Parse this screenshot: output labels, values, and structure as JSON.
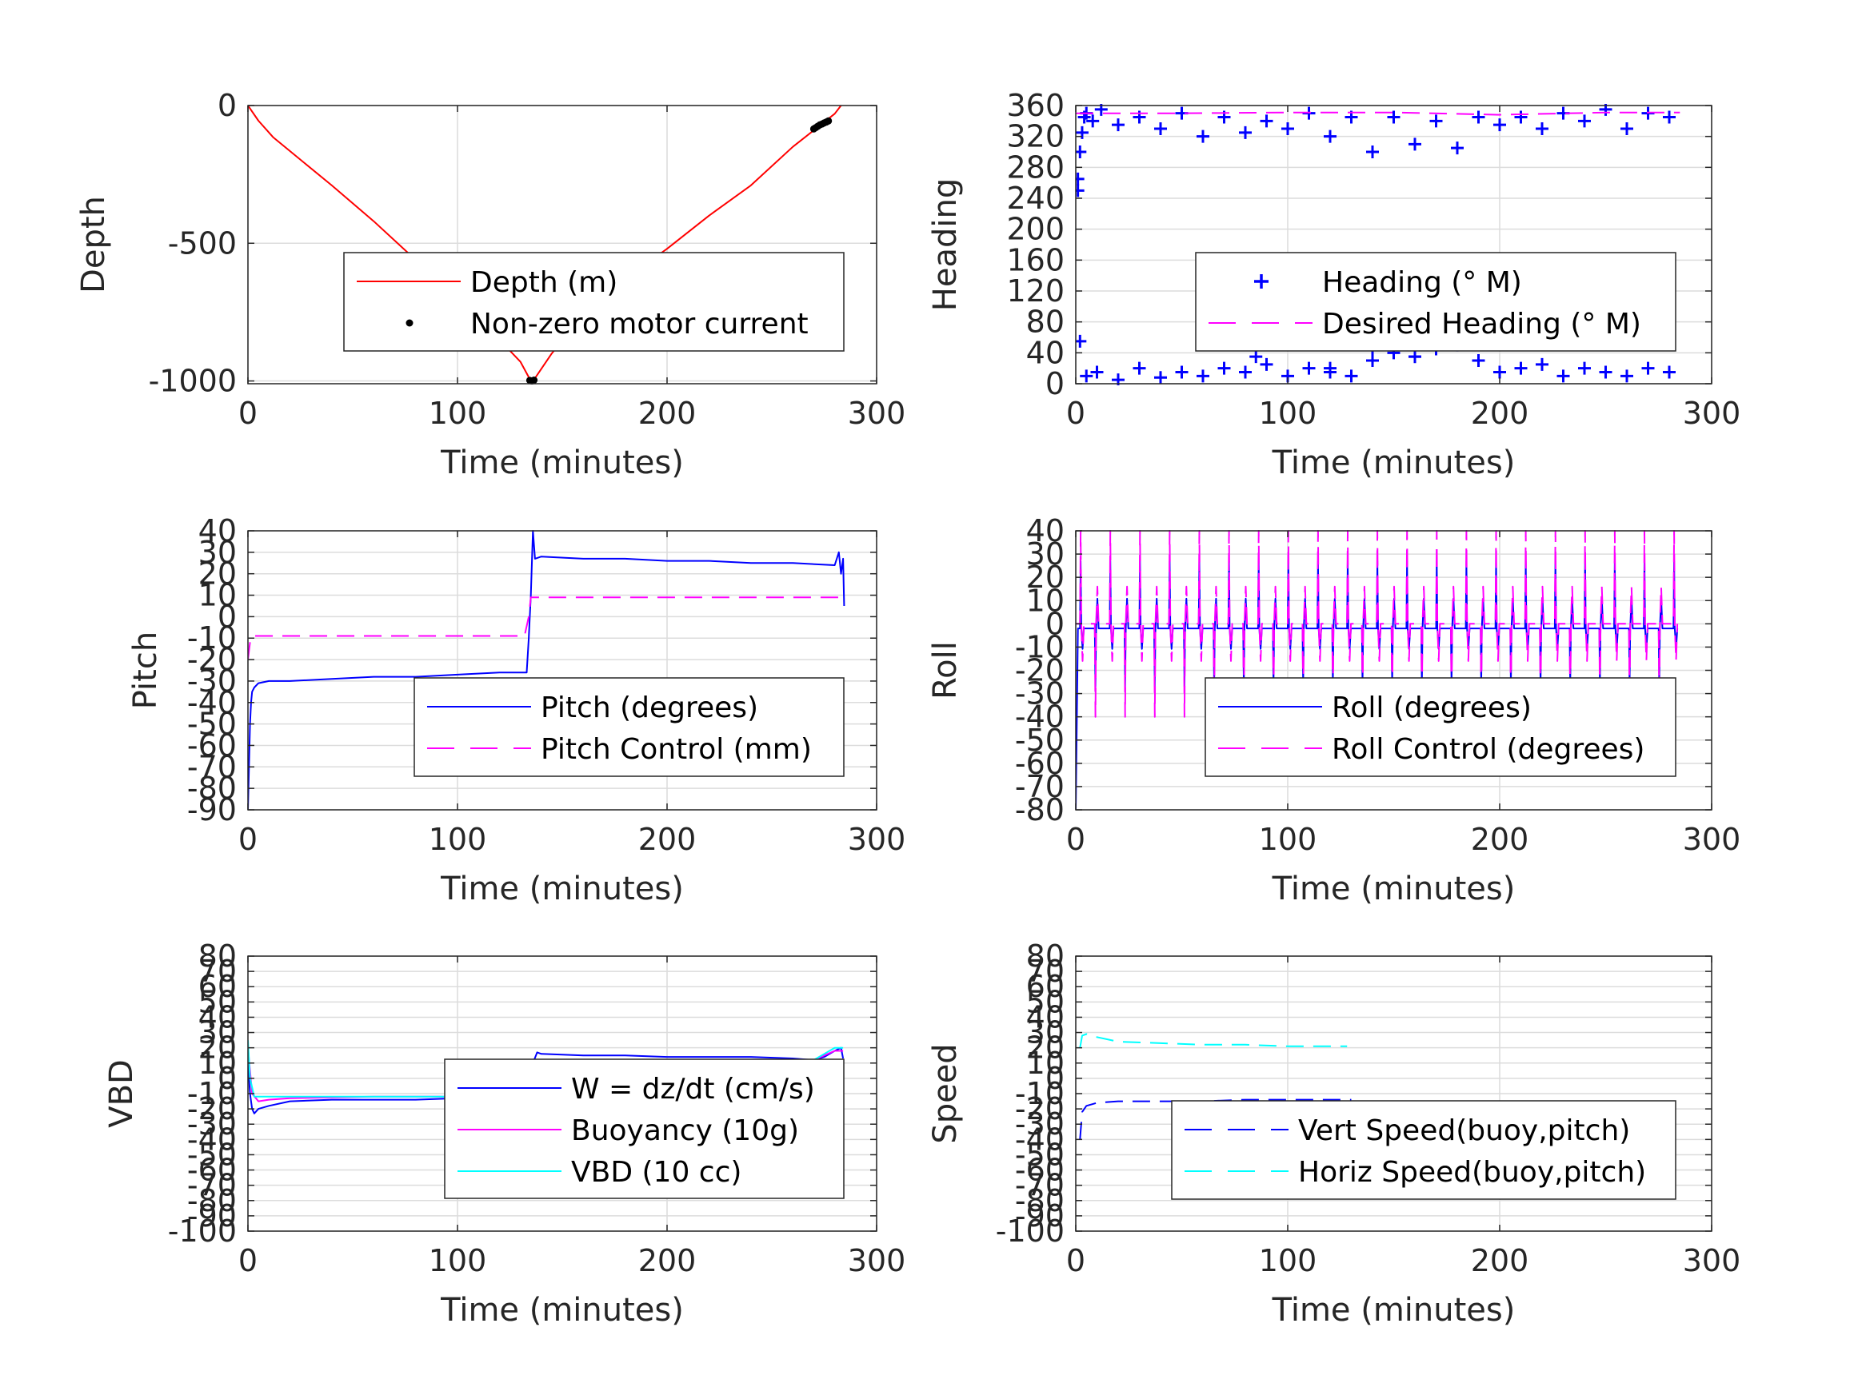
{
  "chart_data": [
    {
      "type": "line",
      "xlabel": "Time (minutes)",
      "ylabel": "Depth",
      "xlim": [
        0,
        300
      ],
      "ylim": [
        -1010,
        0
      ],
      "xticks": [
        0,
        100,
        200,
        300
      ],
      "yticks": [
        0,
        -500,
        -1000
      ],
      "ytick_labels": [
        "0",
        "-500",
        "-1000"
      ],
      "grid": true,
      "legend_position": "center-right",
      "series": [
        {
          "name": "Depth (m)",
          "color": "#ff0000",
          "style": "solid",
          "x": [
            0,
            5,
            12,
            20,
            40,
            60,
            80,
            100,
            120,
            130,
            135,
            137,
            145,
            160,
            180,
            200,
            220,
            240,
            260,
            270,
            280,
            283
          ],
          "y": [
            0,
            -55,
            -115,
            -165,
            -290,
            -420,
            -560,
            -700,
            -850,
            -930,
            -1000,
            -990,
            -900,
            -760,
            -630,
            -520,
            -400,
            -290,
            -150,
            -90,
            -30,
            0
          ]
        },
        {
          "name": "Non-zero motor current",
          "color": "#000000",
          "style": "markers",
          "marker": "dot",
          "x": [
            134.5,
            135.5,
            136.5,
            270,
            271,
            272,
            273,
            274,
            275,
            276,
            277
          ],
          "y": [
            -998,
            -1000,
            -997,
            -85,
            -80,
            -75,
            -70,
            -67,
            -63,
            -60,
            -56
          ]
        }
      ]
    },
    {
      "type": "scatter",
      "xlabel": "Time (minutes)",
      "ylabel": "Heading",
      "xlim": [
        0,
        300
      ],
      "ylim": [
        0,
        360
      ],
      "xticks": [
        0,
        100,
        200,
        300
      ],
      "yticks": [
        0,
        40,
        80,
        120,
        160,
        200,
        240,
        280,
        320,
        360
      ],
      "ytick_labels": [
        "0",
        "40",
        "80",
        "120",
        "160",
        "200",
        "240",
        "280",
        "320",
        "360"
      ],
      "grid": true,
      "legend_position": "center-right",
      "series": [
        {
          "name": "Heading (° M)",
          "color": "#0000ff",
          "style": "markers",
          "marker": "plus",
          "x": [
            1,
            1,
            2,
            3,
            4,
            5,
            8,
            12,
            20,
            30,
            40,
            50,
            60,
            70,
            80,
            90,
            100,
            110,
            120,
            130,
            140,
            150,
            160,
            170,
            180,
            190,
            200,
            210,
            220,
            230,
            240,
            250,
            260,
            270,
            280,
            2,
            5,
            10,
            20,
            30,
            40,
            50,
            60,
            70,
            80,
            90,
            100,
            110,
            120,
            130,
            140,
            150,
            160,
            170,
            180,
            190,
            200,
            210,
            220,
            230,
            240,
            250,
            260,
            270,
            280,
            85,
            120,
            140,
            160,
            185
          ],
          "y": [
            250,
            265,
            300,
            325,
            345,
            350,
            340,
            355,
            335,
            345,
            330,
            350,
            320,
            345,
            325,
            340,
            330,
            350,
            320,
            345,
            300,
            345,
            310,
            340,
            305,
            345,
            335,
            345,
            330,
            350,
            340,
            355,
            330,
            350,
            345,
            55,
            10,
            15,
            5,
            20,
            8,
            15,
            10,
            20,
            15,
            25,
            10,
            20,
            15,
            10,
            30,
            40,
            35,
            45,
            50,
            30,
            15,
            20,
            25,
            10,
            20,
            15,
            10,
            20,
            15,
            35,
            20,
            45,
            35,
            55
          ]
        },
        {
          "name": "Desired Heading (° M)",
          "color": "#ff00ff",
          "style": "dashed",
          "x": [
            0,
            50,
            100,
            150,
            200,
            250,
            285
          ],
          "y": [
            350,
            350,
            351,
            351,
            348,
            351,
            351
          ]
        }
      ]
    },
    {
      "type": "line",
      "xlabel": "Time (minutes)",
      "ylabel": "Pitch",
      "xlim": [
        0,
        300
      ],
      "ylim": [
        -90,
        40
      ],
      "xticks": [
        0,
        100,
        200,
        300
      ],
      "yticks": [
        40,
        30,
        20,
        10,
        0,
        -10,
        -20,
        -30,
        -40,
        -50,
        -60,
        -70,
        -80,
        -90
      ],
      "ytick_labels": [
        "40",
        "30",
        "20",
        "10",
        "0",
        "-10",
        "-20",
        "-30",
        "-40",
        "-50",
        "-60",
        "-70",
        "-80",
        "-90"
      ],
      "grid": true,
      "legend_position": "center-right",
      "series": [
        {
          "name": "Pitch (degrees)",
          "color": "#0000ff",
          "style": "solid",
          "x": [
            0,
            0.5,
            1,
            1.5,
            2,
            3,
            5,
            10,
            20,
            40,
            60,
            80,
            100,
            120,
            133,
            134,
            135,
            136,
            137,
            140,
            160,
            180,
            200,
            220,
            240,
            260,
            280,
            282,
            283,
            284,
            284.5
          ],
          "y": [
            -90,
            -70,
            -50,
            -40,
            -35,
            -33,
            -31,
            -30,
            -30,
            -29,
            -28,
            -28,
            -27,
            -26,
            -26,
            -10,
            10,
            40,
            27,
            28,
            27,
            27,
            26,
            26,
            25,
            25,
            24,
            30,
            20,
            27,
            5
          ]
        },
        {
          "name": "Pitch Control (mm)",
          "color": "#ff00ff",
          "style": "dashed",
          "x": [
            0,
            1,
            2,
            5,
            50,
            100,
            132,
            134,
            135,
            140,
            200,
            250,
            284
          ],
          "y": [
            -20,
            -12,
            -9,
            -9,
            -9,
            -9,
            -9,
            0,
            9,
            9,
            9,
            9,
            9
          ]
        }
      ]
    },
    {
      "type": "line",
      "xlabel": "Time (minutes)",
      "ylabel": "Roll",
      "xlim": [
        0,
        300
      ],
      "ylim": [
        -80,
        40
      ],
      "xticks": [
        0,
        100,
        200,
        300
      ],
      "yticks": [
        40,
        30,
        20,
        10,
        0,
        -10,
        -20,
        -30,
        -40,
        -50,
        -60,
        -70,
        -80
      ],
      "ytick_labels": [
        "40",
        "30",
        "20",
        "10",
        "0",
        "-10",
        "-20",
        "-30",
        "-40",
        "-50",
        "-60",
        "-70",
        "-80"
      ],
      "grid": true,
      "legend_position": "center-right",
      "oscillation": {
        "start": 2,
        "end": 283,
        "period": 7
      },
      "series": [
        {
          "name": "Roll (degrees)",
          "color": "#0000ff",
          "style": "solid",
          "spike_high": 27,
          "spike_low": -27,
          "base": -2,
          "start_min": -80
        },
        {
          "name": "Roll Control (degrees)",
          "color": "#ff00ff",
          "style": "dashed",
          "spike_high": 40,
          "spike_low": -40,
          "base": 0
        }
      ]
    },
    {
      "type": "line",
      "xlabel": "Time (minutes)",
      "ylabel": "VBD",
      "xlim": [
        0,
        300
      ],
      "ylim": [
        -100,
        80
      ],
      "xticks": [
        0,
        100,
        200,
        300
      ],
      "yticks": [
        80,
        70,
        60,
        50,
        40,
        30,
        20,
        10,
        0,
        -10,
        -20,
        -30,
        -40,
        -50,
        -60,
        -70,
        -80,
        -90,
        -100
      ],
      "ytick_labels": [
        "80",
        "70",
        "60",
        "50",
        "40",
        "30",
        "20",
        "10",
        "0",
        "-10",
        "-20",
        "-30",
        "-40",
        "-50",
        "-60",
        "-70",
        "-80",
        "-90",
        "-100"
      ],
      "grid": true,
      "legend_position": "center-right",
      "series": [
        {
          "name": "W = dz/dt (cm/s)",
          "color": "#0000ff",
          "style": "solid",
          "x": [
            0,
            1,
            2,
            3,
            5,
            10,
            20,
            40,
            60,
            80,
            100,
            120,
            133,
            134,
            136,
            138,
            140,
            160,
            180,
            200,
            220,
            240,
            260,
            270,
            275,
            280,
            283,
            284
          ],
          "y": [
            10,
            -10,
            -20,
            -23,
            -20,
            -18,
            -15,
            -14,
            -14,
            -14,
            -13,
            -13,
            -12,
            0,
            10,
            17,
            16,
            15,
            15,
            14,
            14,
            14,
            13,
            12,
            14,
            18,
            20,
            13
          ]
        },
        {
          "name": "Buoyancy (10g)",
          "color": "#ff00ff",
          "style": "solid",
          "x": [
            0,
            2,
            5,
            10,
            20,
            60,
            100,
            133,
            135,
            137,
            150,
            200,
            250,
            270,
            275,
            280,
            284
          ],
          "y": [
            20,
            -10,
            -15,
            -14,
            -13,
            -12,
            -12,
            -12,
            5,
            12,
            12,
            12,
            12,
            12,
            15,
            18,
            18
          ]
        },
        {
          "name": "VBD (10 cc)",
          "color": "#00ffff",
          "style": "solid",
          "x": [
            0,
            1,
            3,
            5,
            10,
            50,
            100,
            133,
            135,
            137,
            150,
            200,
            250,
            270,
            275,
            280,
            284
          ],
          "y": [
            25,
            0,
            -12,
            -12,
            -12,
            -12,
            -12,
            -12,
            5,
            12,
            12,
            12,
            12,
            12,
            16,
            20,
            20
          ]
        }
      ]
    },
    {
      "type": "line",
      "xlabel": "Time (minutes)",
      "ylabel": "Speed",
      "xlim": [
        0,
        300
      ],
      "ylim": [
        -100,
        80
      ],
      "xticks": [
        0,
        100,
        200,
        300
      ],
      "yticks": [
        80,
        70,
        60,
        50,
        40,
        30,
        20,
        10,
        0,
        -10,
        -20,
        -30,
        -40,
        -50,
        -60,
        -70,
        -80,
        -90,
        -100
      ],
      "ytick_labels": [
        "80",
        "70",
        "60",
        "50",
        "40",
        "30",
        "20",
        "10",
        "0",
        "-10",
        "-20",
        "-30",
        "-40",
        "-50",
        "-60",
        "-70",
        "-80",
        "-90",
        "-100"
      ],
      "grid": true,
      "legend_position": "center-right",
      "series": [
        {
          "name": "Vert Speed(buoy,pitch)",
          "color": "#0000ff",
          "style": "dashed",
          "x": [
            2,
            3,
            5,
            10,
            20,
            40,
            60,
            80,
            100,
            120,
            130
          ],
          "y": [
            -40,
            -22,
            -18,
            -16,
            -15,
            -15,
            -15,
            -14,
            -14,
            -14,
            -14
          ]
        },
        {
          "name": "Horiz Speed(buoy,pitch)",
          "color": "#00ffff",
          "style": "dashed",
          "x": [
            2,
            3,
            5,
            10,
            20,
            40,
            60,
            80,
            100,
            120,
            128
          ],
          "y": [
            20,
            28,
            29,
            27,
            24,
            23,
            22,
            22,
            21,
            21,
            21
          ]
        }
      ]
    }
  ]
}
